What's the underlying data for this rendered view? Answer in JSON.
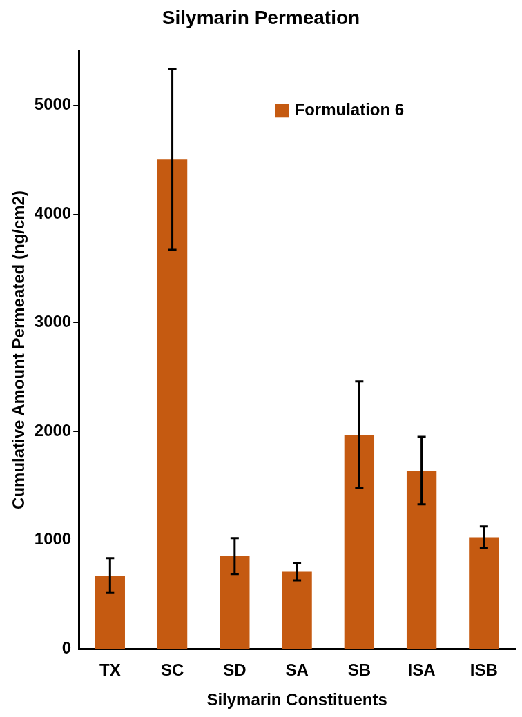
{
  "chart_data": {
    "type": "bar",
    "title": "Silymarin Permeation",
    "xlabel": "Silymarin Constituents",
    "ylabel": "Cumulative Amount Permeated (ng/cm2)",
    "categories": [
      "TX",
      "SC",
      "SD",
      "SA",
      "SB",
      "ISA",
      "ISB"
    ],
    "series": [
      {
        "name": "Formulation 6",
        "color": "#c55a11",
        "values": [
          675,
          4500,
          855,
          710,
          1970,
          1640,
          1027
        ],
        "errors": [
          160,
          830,
          165,
          80,
          490,
          310,
          100
        ]
      }
    ],
    "ylim": [
      0,
      5500
    ],
    "yticks": [
      0,
      1000,
      2000,
      3000,
      4000,
      5000
    ],
    "grid": false,
    "legend": "top right"
  }
}
